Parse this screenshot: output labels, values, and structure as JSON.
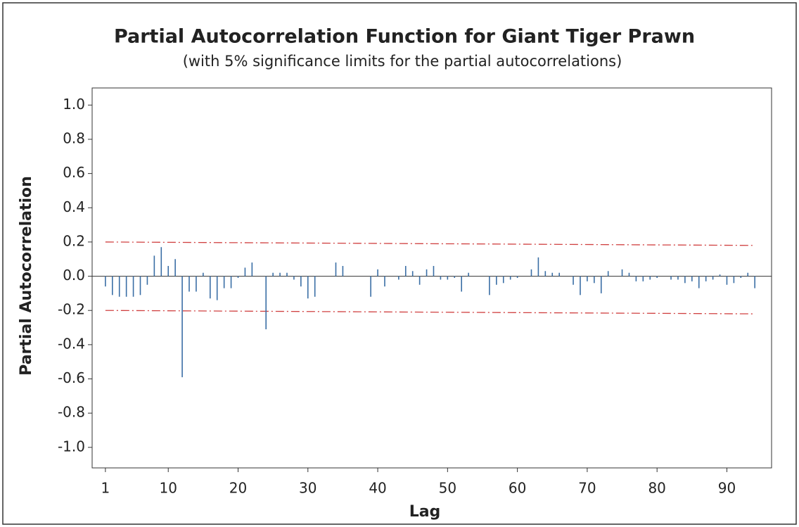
{
  "chart_data": {
    "type": "bar",
    "title": "Partial Autocorrelation Function for Giant Tiger Prawn",
    "subtitle": "(with 5% significance limits for the partial autocorrelations)",
    "x_label": "Lag",
    "y_label": "Partial Autocorrelation",
    "x": [
      1,
      2,
      3,
      4,
      5,
      6,
      7,
      8,
      9,
      10,
      11,
      12,
      13,
      14,
      15,
      16,
      17,
      18,
      19,
      20,
      21,
      22,
      23,
      24,
      25,
      26,
      27,
      28,
      29,
      30,
      31,
      32,
      33,
      34,
      35,
      36,
      37,
      38,
      39,
      40,
      41,
      42,
      43,
      44,
      45,
      46,
      47,
      48,
      49,
      50,
      51,
      52,
      53,
      54,
      55,
      56,
      57,
      58,
      59,
      60,
      61,
      62,
      63,
      64,
      65,
      66,
      67,
      68,
      69,
      70,
      71,
      72,
      73,
      74,
      75,
      76,
      77,
      78,
      79,
      80,
      81,
      82,
      83,
      84,
      85,
      86,
      87,
      88,
      89,
      90,
      91,
      92,
      93,
      94
    ],
    "values": [
      -0.06,
      -0.11,
      -0.12,
      -0.12,
      -0.12,
      -0.11,
      -0.05,
      0.12,
      0.17,
      0.06,
      0.1,
      -0.59,
      -0.09,
      -0.09,
      0.02,
      -0.13,
      -0.14,
      -0.07,
      -0.07,
      -0.01,
      0.05,
      0.08,
      0.0,
      -0.31,
      0.02,
      0.02,
      0.02,
      -0.02,
      -0.06,
      -0.13,
      -0.12,
      0.0,
      0.0,
      0.08,
      0.06,
      0.0,
      0.0,
      0.0,
      -0.12,
      0.04,
      -0.06,
      0.0,
      -0.02,
      0.06,
      0.03,
      -0.05,
      0.04,
      0.06,
      -0.02,
      -0.02,
      -0.01,
      -0.09,
      0.02,
      0.0,
      0.0,
      -0.11,
      -0.05,
      -0.04,
      -0.02,
      -0.01,
      0.0,
      0.04,
      0.11,
      0.03,
      0.02,
      0.02,
      0.0,
      -0.05,
      -0.11,
      -0.03,
      -0.04,
      -0.1,
      0.03,
      0.0,
      0.04,
      0.02,
      -0.03,
      -0.03,
      -0.02,
      -0.01,
      0.0,
      -0.02,
      -0.02,
      -0.04,
      -0.03,
      -0.07,
      -0.03,
      -0.02,
      0.01,
      -0.05,
      -0.04,
      -0.01,
      0.02,
      -0.07
    ],
    "color": "#3a6ea5",
    "limits": {
      "x": [
        1,
        94
      ],
      "upper": [
        0.2,
        0.18
      ],
      "lower": [
        -0.2,
        -0.22
      ],
      "color": "#d04040"
    },
    "xlim": [
      -0.9,
      96.4
    ],
    "ylim": [
      -1.12,
      1.1
    ],
    "xticks": [
      1,
      10,
      20,
      30,
      40,
      50,
      60,
      70,
      80,
      90
    ],
    "yticks": [
      {
        "value": 1,
        "label": "1.0"
      },
      {
        "value": 0.8,
        "label": "0.8"
      },
      {
        "value": 0.6,
        "label": "0.6"
      },
      {
        "value": 0.4,
        "label": "0.4"
      },
      {
        "value": 0.2,
        "label": "0.2"
      },
      {
        "value": 0,
        "label": "0.0"
      },
      {
        "value": -0.2,
        "label": "-0.2"
      },
      {
        "value": -0.4,
        "label": "-0.4"
      },
      {
        "value": -0.6,
        "label": "-0.6"
      },
      {
        "value": -0.8,
        "label": "-0.8"
      },
      {
        "value": -1,
        "label": "-1.0"
      }
    ]
  }
}
